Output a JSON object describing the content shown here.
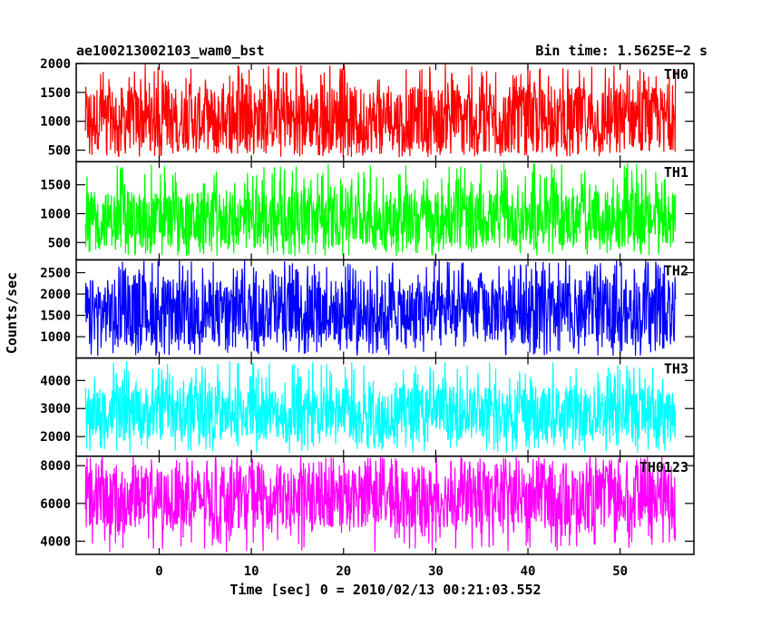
{
  "header": {
    "left_title": "ae100213002103_wam0_bst",
    "right_title": "Bin time: 1.5625E−2 s"
  },
  "chart_data": {
    "type": "line",
    "title": "ae100213002103_wam0_bst",
    "subtitle": "Bin time: 1.5625E−2 s",
    "xlabel": "Time [sec] 0 = 2010/02/13 00:21:03.552",
    "ylabel": "Counts/sec",
    "xlim": [
      -9,
      58
    ],
    "x_data_range": [
      -8,
      56
    ],
    "xticks": [
      0,
      10,
      20,
      30,
      40,
      50
    ],
    "grid": false,
    "panels": [
      {
        "name": "TH0",
        "color": "#ff0000",
        "ylim": [
          300,
          2000
        ],
        "yticks": [
          500,
          1000,
          1500,
          2000
        ],
        "mean": 1050,
        "band_low": 500,
        "band_high": 1600,
        "min_spike": 380,
        "max_spike": 2000
      },
      {
        "name": "TH1",
        "color": "#00ff00",
        "ylim": [
          200,
          1900
        ],
        "yticks": [
          500,
          1000,
          1500
        ],
        "mean": 900,
        "band_low": 430,
        "band_high": 1380,
        "min_spike": 260,
        "max_spike": 1880
      },
      {
        "name": "TH2",
        "color": "#0000ff",
        "ylim": [
          500,
          2800
        ],
        "yticks": [
          1000,
          1500,
          2000,
          2500
        ],
        "mean": 1550,
        "band_low": 850,
        "band_high": 2350,
        "min_spike": 550,
        "max_spike": 2800
      },
      {
        "name": "TH3",
        "color": "#00ffff",
        "ylim": [
          1300,
          4800
        ],
        "yticks": [
          2000,
          3000,
          4000
        ],
        "mean": 2850,
        "band_low": 1900,
        "band_high": 3800,
        "min_spike": 1400,
        "max_spike": 4700
      },
      {
        "name": "TH0123",
        "color": "#ff00ff",
        "ylim": [
          3300,
          8500
        ],
        "yticks": [
          4000,
          6000,
          8000
        ],
        "mean": 6400,
        "band_low": 4700,
        "band_high": 7900,
        "min_spike": 3400,
        "max_spike": 8500
      }
    ]
  }
}
